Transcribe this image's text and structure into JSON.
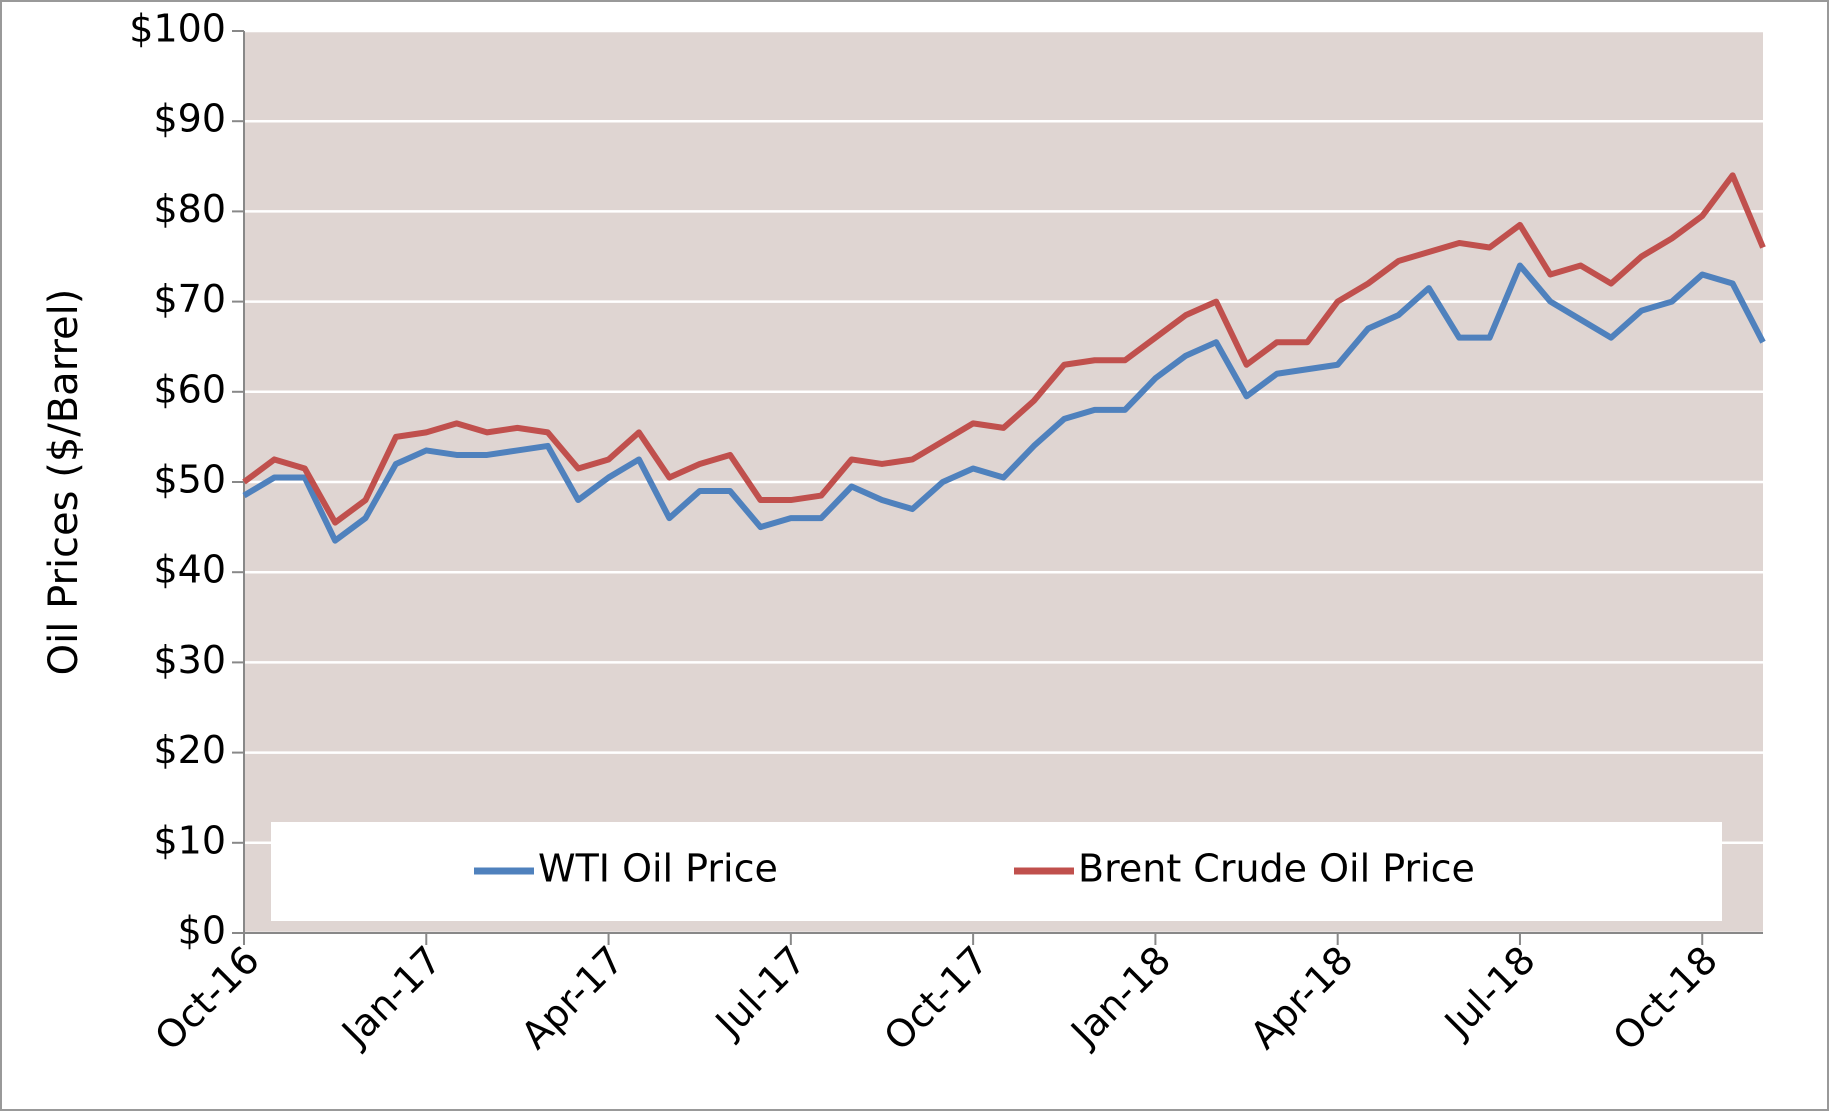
{
  "chart_data": {
    "type": "line",
    "y_label": "Oil Prices ($/Barrel)",
    "categories": [
      "Oct-16",
      null,
      null,
      null,
      null,
      null,
      "Jan-17",
      null,
      null,
      null,
      null,
      null,
      "Apr-17",
      null,
      null,
      null,
      null,
      null,
      "Jul-17",
      null,
      null,
      null,
      null,
      null,
      "Oct-17",
      null,
      null,
      null,
      null,
      null,
      "Jan-18",
      null,
      null,
      null,
      null,
      null,
      "Apr-18",
      null,
      null,
      null,
      null,
      null,
      "Jul-18",
      null,
      null,
      null,
      null,
      null,
      "Oct-18",
      null,
      null
    ],
    "series": [
      {
        "name": "WTI Oil Price",
        "color": "#4f81bd",
        "values": [
          48.5,
          50.5,
          50.5,
          43.5,
          46,
          52,
          53.5,
          53,
          53,
          53.5,
          54,
          48,
          50.5,
          52.5,
          46,
          49,
          49,
          45,
          46,
          46,
          49.5,
          48,
          47,
          50,
          51.5,
          50.5,
          54,
          57,
          58,
          58,
          61.5,
          64,
          65.5,
          59.5,
          62,
          62.5,
          63,
          67,
          68.5,
          71.5,
          66,
          66,
          74,
          70,
          68,
          66,
          69,
          70,
          73,
          72,
          65.5
        ]
      },
      {
        "name": "Brent Crude Oil Price",
        "color": "#c0504d",
        "values": [
          50,
          52.5,
          51.5,
          45.5,
          48,
          55,
          55.5,
          56.5,
          55.5,
          56,
          55.5,
          51.5,
          52.5,
          55.5,
          50.5,
          52,
          53,
          48,
          48,
          48.5,
          52.5,
          52,
          52.5,
          54.5,
          56.5,
          56,
          59,
          63,
          63.5,
          63.5,
          66,
          68.5,
          70,
          63,
          65.5,
          65.5,
          70,
          72,
          74.5,
          75.5,
          76.5,
          76,
          78.5,
          73,
          74,
          72,
          75,
          77,
          79.5,
          84,
          76
        ]
      }
    ],
    "ylim": [
      0,
      100
    ],
    "yticks": [
      {
        "value": 0,
        "label": "$0"
      },
      {
        "value": 10,
        "label": "$10"
      },
      {
        "value": 20,
        "label": "$20"
      },
      {
        "value": 30,
        "label": "$30"
      },
      {
        "value": 40,
        "label": "$40"
      },
      {
        "value": 50,
        "label": "$50"
      },
      {
        "value": 60,
        "label": "$60"
      },
      {
        "value": 70,
        "label": "$70"
      },
      {
        "value": 80,
        "label": "$80"
      },
      {
        "value": 90,
        "label": "$90"
      },
      {
        "value": 100,
        "label": "$100"
      }
    ],
    "grid": true,
    "plot_background": "#dfd5d2",
    "legend": "bottom"
  }
}
